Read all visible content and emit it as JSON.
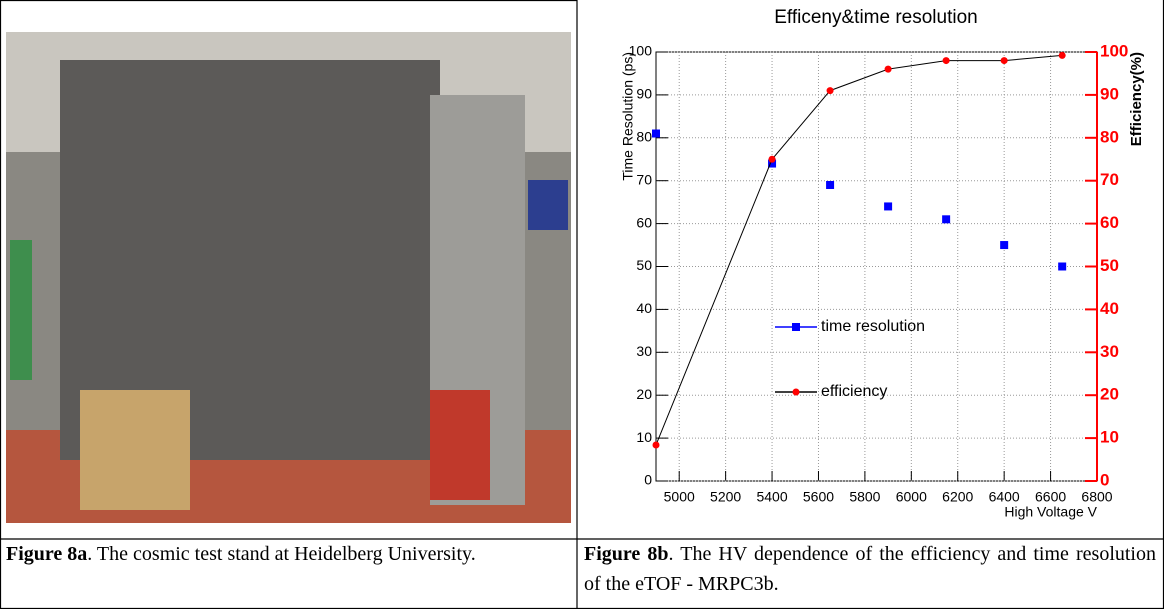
{
  "chart_data": {
    "type": "scatter",
    "title": "Efficeny&time resolution",
    "x_label": "High Voltage V",
    "y_label": "Time Resolution (ps)",
    "y2_label": "Efficiency(%)",
    "x": [
      4900,
      5400,
      5650,
      5900,
      6150,
      6400,
      6650
    ],
    "series": [
      {
        "name": "time resolution",
        "color": "#0000ff",
        "marker": "square",
        "axis": "y",
        "values": [
          81,
          74,
          69,
          64,
          61,
          55,
          50
        ]
      },
      {
        "name": "efficiency",
        "color": "#ff0000",
        "marker": "circle",
        "line_color": "#000000",
        "axis": "y2",
        "values": [
          8.4,
          75,
          91,
          96,
          98,
          98,
          99.2
        ]
      }
    ],
    "xlim": [
      4900,
      6800
    ],
    "xticks": [
      5000,
      5200,
      5400,
      5600,
      5800,
      6000,
      6200,
      6400,
      6600,
      6800
    ],
    "ylim": [
      0,
      100
    ],
    "yticks": [
      0,
      10,
      20,
      30,
      40,
      50,
      60,
      70,
      80,
      90,
      100
    ],
    "y2lim": [
      0,
      100
    ],
    "y2ticks": [
      0,
      10,
      20,
      30,
      40,
      50,
      60,
      70,
      80,
      90,
      100
    ],
    "grid": true
  },
  "captions": [
    {
      "label": "Figure 8a",
      "text": ". The cosmic test stand at Heidelberg University."
    },
    {
      "label": "Figure 8b",
      "text": ". The HV dependence of the efficiency and time resolution of the eTOF - MRPC3b."
    }
  ]
}
